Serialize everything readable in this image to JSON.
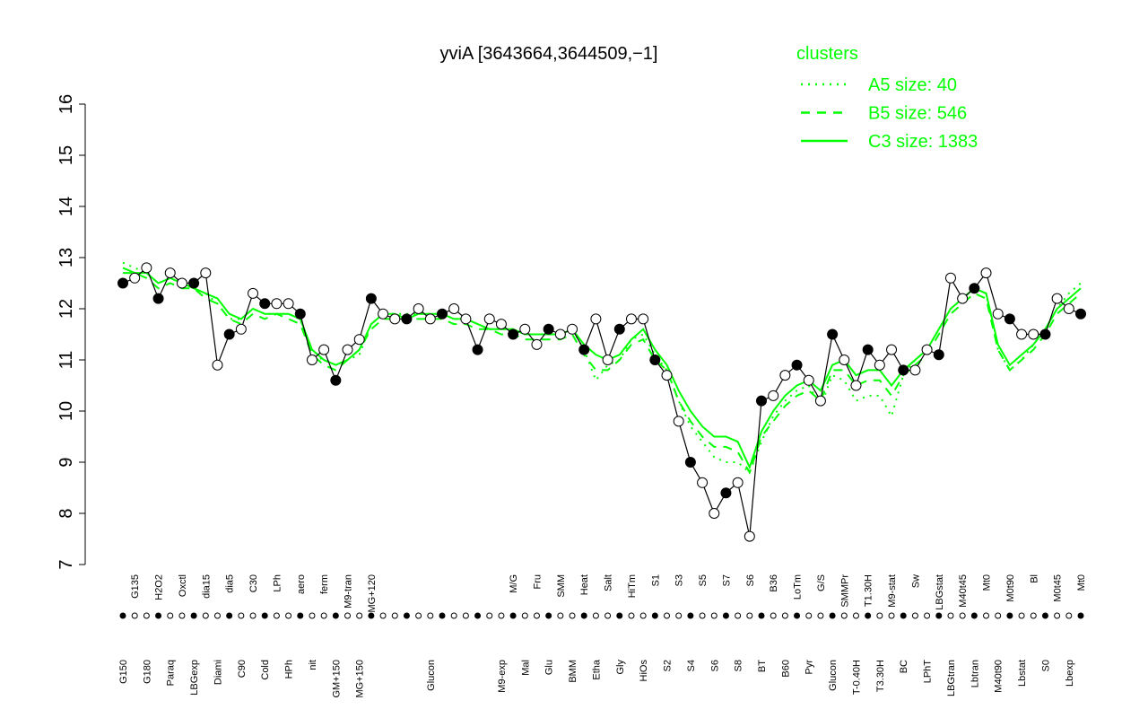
{
  "chart_data": {
    "type": "line",
    "title": "yviA [3643664,3644509,−1]",
    "legend_title": "clusters",
    "legend": "top-right",
    "ylim": [
      7,
      16
    ],
    "yticks": [
      7,
      8,
      9,
      10,
      11,
      12,
      13,
      14,
      15,
      16
    ],
    "categories": [
      "G150",
      "G135",
      "G180",
      "H2O2",
      "Paraq",
      "Oxctl",
      "LBGexp",
      "dia15",
      "Diami",
      "dia5",
      "C90",
      "C30",
      "Cold",
      "LPh",
      "HPh",
      "aero",
      "nit",
      "ferm",
      "GM+150",
      "M9-tran",
      "MG+150",
      "MG+120",
      null,
      null,
      null,
      null,
      "Glucon",
      null,
      null,
      null,
      null,
      null,
      "M9-exp",
      "M/G",
      "Mal",
      "Fru",
      "Glu",
      "SMM",
      "BMM",
      "Heat",
      "Etha",
      "Salt",
      "Gly",
      "HiTm",
      "HiOs",
      "S1",
      "S2",
      "S3",
      "S4",
      "S5",
      "S6",
      "S7",
      "S8",
      "S6",
      "BT",
      "B36",
      "B60",
      "LoTm",
      "Pyr",
      "G/S",
      "Glucon",
      "SMMPr",
      "T-0.40H",
      "T1.30H",
      "T3.30H",
      "M9-stat",
      "BC",
      "Sw",
      "LPhT",
      "LBGstat",
      "LBGtran",
      "M40t45",
      "Lbtran",
      "Mt0",
      "M40t90",
      "M0t90",
      "Lbstat",
      "Bl",
      "S0",
      "M0t45",
      "Lbexp",
      "Mt0"
    ],
    "series": [
      {
        "name": "A5 size: 40",
        "color": "#00ff00",
        "style": "dotted",
        "values": [
          12.9,
          12.8,
          12.7,
          12.5,
          12.6,
          12.5,
          12.4,
          12.3,
          12.1,
          11.8,
          11.8,
          12.0,
          11.9,
          11.9,
          11.9,
          11.8,
          11.1,
          11.0,
          10.9,
          11.0,
          11.1,
          11.7,
          11.9,
          11.9,
          11.9,
          11.9,
          11.9,
          11.9,
          11.8,
          11.8,
          11.7,
          11.6,
          11.6,
          11.6,
          11.5,
          11.5,
          11.5,
          11.5,
          11.6,
          11.2,
          10.6,
          10.9,
          11.0,
          11.4,
          11.5,
          11.1,
          10.8,
          10.2,
          9.7,
          9.4,
          9.1,
          9.0,
          9.0,
          8.8,
          9.4,
          9.9,
          10.2,
          10.4,
          10.5,
          10.1,
          10.7,
          10.6,
          10.2,
          10.3,
          10.3,
          9.9,
          10.7,
          11.0,
          11.2,
          11.6,
          12.0,
          12.2,
          12.4,
          12.3,
          11.2,
          10.8,
          11.0,
          11.3,
          11.6,
          12.0,
          12.3,
          12.5
        ]
      },
      {
        "name": "B5 size: 546",
        "color": "#00ff00",
        "style": "dashed",
        "values": [
          12.7,
          12.7,
          12.6,
          12.4,
          12.5,
          12.4,
          12.4,
          12.2,
          12.1,
          11.8,
          11.7,
          11.9,
          11.8,
          11.9,
          11.8,
          11.7,
          11.1,
          10.9,
          10.8,
          11.0,
          11.2,
          11.6,
          11.8,
          11.8,
          11.8,
          11.8,
          11.8,
          11.8,
          11.7,
          11.7,
          11.6,
          11.6,
          11.5,
          11.5,
          11.4,
          11.4,
          11.4,
          11.4,
          11.5,
          11.1,
          10.8,
          10.8,
          11.0,
          11.3,
          11.4,
          11.0,
          10.8,
          10.2,
          9.8,
          9.5,
          9.3,
          9.3,
          9.2,
          8.8,
          9.5,
          9.8,
          10.1,
          10.3,
          10.4,
          10.2,
          10.8,
          10.8,
          10.5,
          10.6,
          10.6,
          10.3,
          10.7,
          10.9,
          11.1,
          11.5,
          11.9,
          12.1,
          12.3,
          12.2,
          11.2,
          10.8,
          11.0,
          11.2,
          11.5,
          11.9,
          12.1,
          12.3
        ]
      },
      {
        "name": "C3 size: 1383",
        "color": "#00ff00",
        "style": "solid",
        "values": [
          12.8,
          12.7,
          12.7,
          12.5,
          12.6,
          12.5,
          12.4,
          12.3,
          12.2,
          11.9,
          11.8,
          12.0,
          11.9,
          11.9,
          11.9,
          11.8,
          11.2,
          11.0,
          10.9,
          11.0,
          11.2,
          11.7,
          11.9,
          11.9,
          11.8,
          11.9,
          11.9,
          11.9,
          11.8,
          11.8,
          11.7,
          11.6,
          11.6,
          11.6,
          11.5,
          11.5,
          11.5,
          11.5,
          11.6,
          11.3,
          11.1,
          11.0,
          11.1,
          11.4,
          11.6,
          11.2,
          10.9,
          10.4,
          10.0,
          9.7,
          9.5,
          9.5,
          9.4,
          8.9,
          9.6,
          10.0,
          10.3,
          10.5,
          10.6,
          10.4,
          10.9,
          11.0,
          10.7,
          10.8,
          10.8,
          10.5,
          10.8,
          11.0,
          11.2,
          11.6,
          12.0,
          12.2,
          12.4,
          12.3,
          11.3,
          10.9,
          11.1,
          11.3,
          11.6,
          12.0,
          12.2,
          12.4
        ]
      },
      {
        "color": "#000000",
        "style": "points",
        "values": [
          12.5,
          12.6,
          12.8,
          12.2,
          12.7,
          12.5,
          12.5,
          12.7,
          10.9,
          11.5,
          11.6,
          12.3,
          12.1,
          12.1,
          12.1,
          11.9,
          11.0,
          11.2,
          10.6,
          11.2,
          11.4,
          12.2,
          11.9,
          11.8,
          11.8,
          12.0,
          11.8,
          11.9,
          12.0,
          11.8,
          11.2,
          11.8,
          11.7,
          11.5,
          11.6,
          11.3,
          11.6,
          11.5,
          11.6,
          11.2,
          11.8,
          11.0,
          11.6,
          11.8,
          11.8,
          11.0,
          10.7,
          9.8,
          9.0,
          8.6,
          8.0,
          8.4,
          8.6,
          7.55,
          10.2,
          10.3,
          10.7,
          10.9,
          10.6,
          10.2,
          11.5,
          11.0,
          10.5,
          11.2,
          10.9,
          11.2,
          10.8,
          10.8,
          11.2,
          11.1,
          12.6,
          12.2,
          12.4,
          12.7,
          11.9,
          11.8,
          11.5,
          11.5,
          11.5,
          12.2,
          12.0,
          11.9
        ]
      }
    ]
  }
}
